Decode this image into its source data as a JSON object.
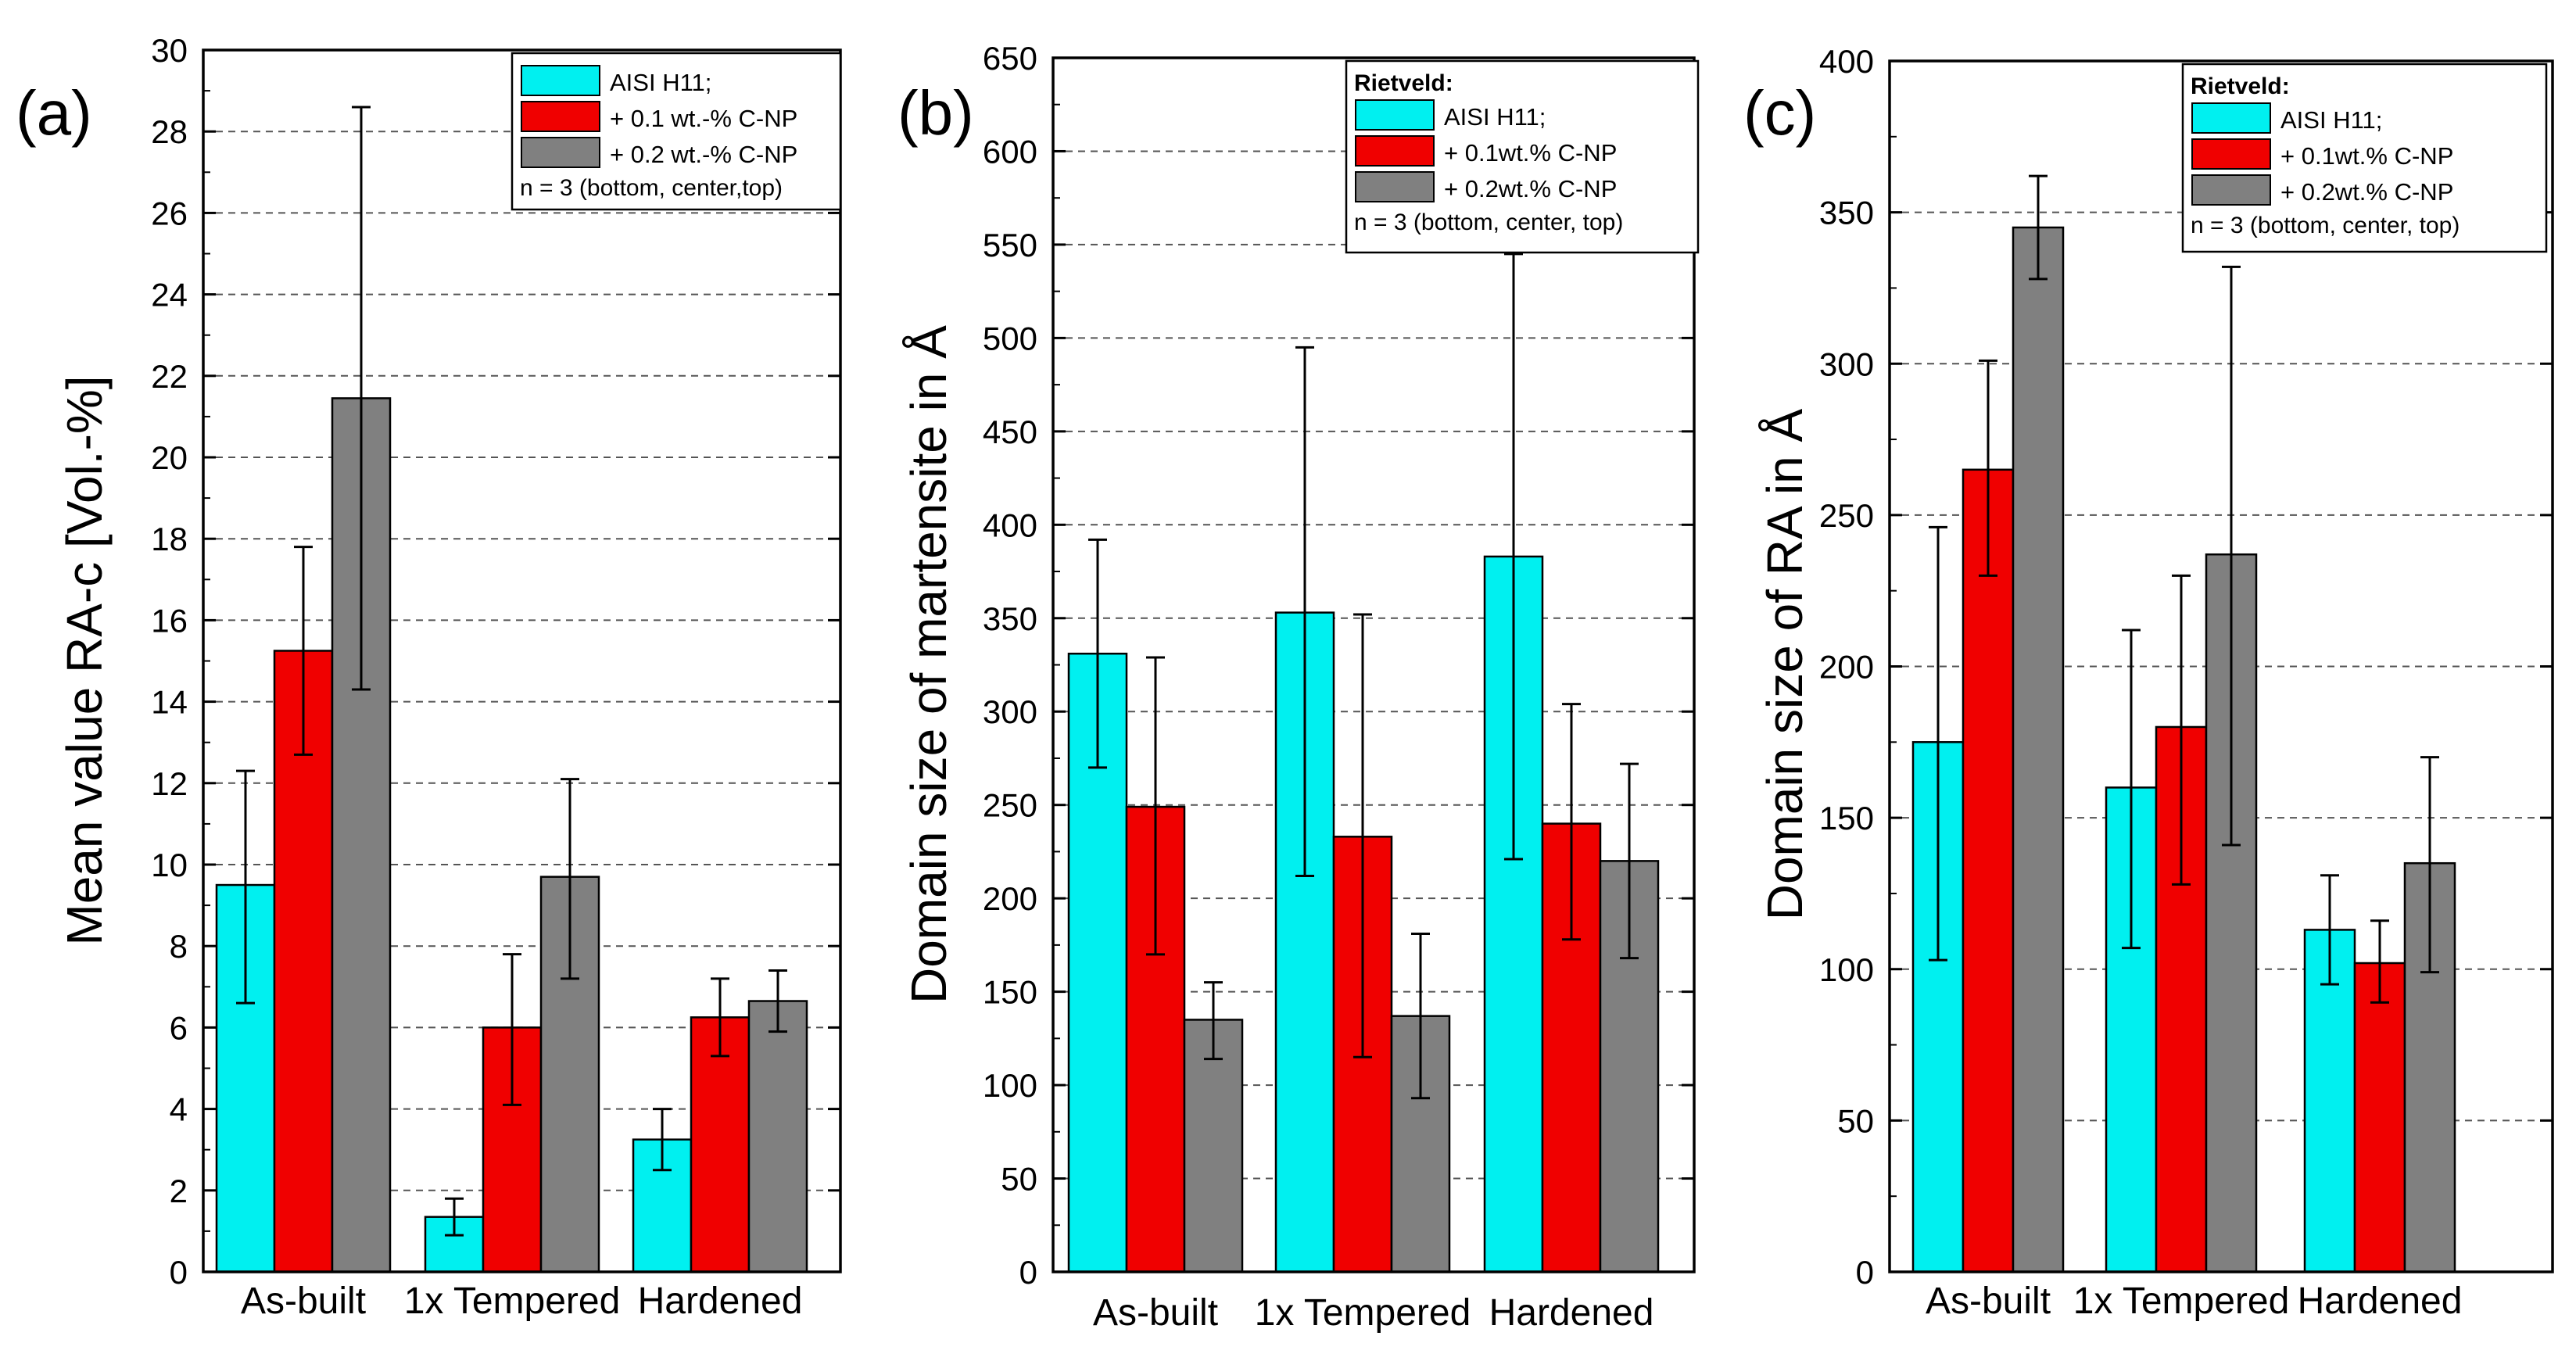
{
  "colors": {
    "cyan": "#00F0F0",
    "red": "#F00000",
    "gray": "#808080",
    "axis": "#000000",
    "grid": "#555555"
  },
  "chart_data": [
    {
      "type": "bar",
      "panel_label": "(a)",
      "ylabel": "Mean value RA-c [Vol.-%]",
      "xlabel": "",
      "ylim": [
        0,
        30
      ],
      "ytick_step": 2,
      "grid": true,
      "legend_position": "top-right",
      "legend_header": "",
      "legend_note": "n = 3 (bottom, center,top)",
      "categories": [
        "As-built",
        "1x Tempered",
        "Hardened"
      ],
      "series": [
        {
          "name": "AISI H11;",
          "color": "#00F0F0",
          "values": [
            9.5,
            1.35,
            3.25
          ],
          "err_low": [
            6.6,
            0.9,
            2.5
          ],
          "err_high": [
            12.3,
            1.8,
            4.0
          ]
        },
        {
          "name": "+ 0.1 wt.-% C-NP",
          "color": "#F00000",
          "values": [
            15.25,
            6.0,
            6.25
          ],
          "err_low": [
            12.7,
            4.1,
            5.3
          ],
          "err_high": [
            17.8,
            7.8,
            7.2
          ]
        },
        {
          "name": "+ 0.2 wt.-% C-NP",
          "color": "#808080",
          "values": [
            21.45,
            9.7,
            6.65
          ],
          "err_low": [
            14.3,
            7.2,
            5.9
          ],
          "err_high": [
            28.6,
            12.1,
            7.4
          ]
        }
      ]
    },
    {
      "type": "bar",
      "panel_label": "(b)",
      "ylabel": "Domain size of martensite in Å",
      "xlabel": "",
      "ylim": [
        0,
        650
      ],
      "ytick_step": 50,
      "grid": true,
      "legend_position": "top-right",
      "legend_header": "Rietveld:",
      "legend_note": "n = 3 (bottom, center, top)",
      "categories": [
        "As-built",
        "1x Tempered",
        "Hardened"
      ],
      "series": [
        {
          "name": "AISI H11;",
          "color": "#00F0F0",
          "values": [
            331,
            353,
            383
          ],
          "err_low": [
            270,
            212,
            221
          ],
          "err_high": [
            392,
            495,
            545
          ]
        },
        {
          "name": "+ 0.1wt.% C-NP",
          "color": "#F00000",
          "values": [
            249,
            233,
            240
          ],
          "err_low": [
            170,
            115,
            178
          ],
          "err_high": [
            329,
            352,
            304
          ]
        },
        {
          "name": "+ 0.2wt.% C-NP",
          "color": "#808080",
          "values": [
            135,
            137,
            220
          ],
          "err_low": [
            114,
            93,
            168
          ],
          "err_high": [
            155,
            181,
            272
          ]
        }
      ]
    },
    {
      "type": "bar",
      "panel_label": "(c)",
      "ylabel": "Domain size of RA in Å",
      "xlabel": "",
      "ylim": [
        0,
        400
      ],
      "ytick_step": 50,
      "grid": true,
      "legend_position": "top-right",
      "legend_header": "Rietveld:",
      "legend_note": "n = 3 (bottom, center, top)",
      "categories": [
        "As-built",
        "1x Tempered",
        "Hardened"
      ],
      "series": [
        {
          "name": "AISI H11;",
          "color": "#00F0F0",
          "values": [
            175,
            160,
            113
          ],
          "err_low": [
            103,
            107,
            95
          ],
          "err_high": [
            246,
            212,
            131
          ]
        },
        {
          "name": "+ 0.1wt.% C-NP",
          "color": "#F00000",
          "values": [
            265,
            180,
            102
          ],
          "err_low": [
            230,
            128,
            89
          ],
          "err_high": [
            301,
            230,
            116
          ]
        },
        {
          "name": "+ 0.2wt.% C-NP",
          "color": "#808080",
          "values": [
            345,
            237,
            135
          ],
          "err_low": [
            328,
            141,
            99
          ],
          "err_high": [
            362,
            332,
            170
          ]
        }
      ]
    }
  ]
}
